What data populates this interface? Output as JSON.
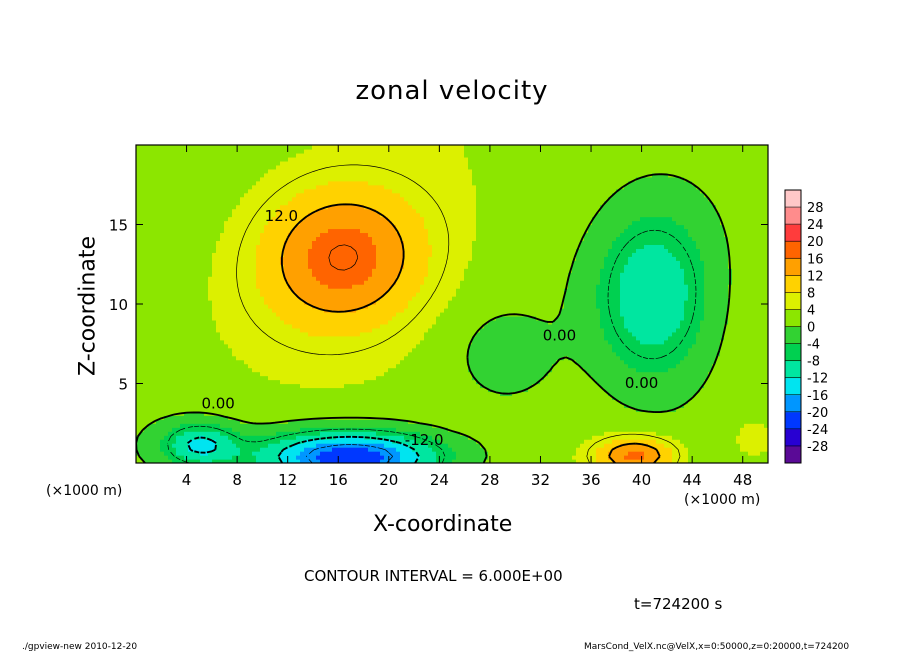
{
  "chart_data": {
    "type": "heatmap",
    "title": "zonal velocity",
    "xlabel": "X-coordinate",
    "ylabel": "Z-coordinate",
    "x_unit": "(×1000 m)",
    "xlim": [
      0,
      50
    ],
    "ylim": [
      0,
      20
    ],
    "x_ticks": [
      4,
      8,
      12,
      16,
      20,
      24,
      28,
      32,
      36,
      40,
      44,
      48
    ],
    "y_ticks": [
      5,
      10,
      15
    ],
    "colorbar": {
      "levels": [
        -28,
        -24,
        -20,
        -16,
        -12,
        -8,
        -4,
        0,
        4,
        8,
        12,
        16,
        20,
        24,
        28
      ],
      "colors": [
        "#5a0a96",
        "#2800d2",
        "#0038ff",
        "#0096ff",
        "#00e4f0",
        "#00e6a0",
        "#00d050",
        "#32d232",
        "#8ce600",
        "#dcf000",
        "#ffd200",
        "#ffa000",
        "#ff6400",
        "#ff3c3c",
        "#ff8c8c",
        "#ffc8c8"
      ]
    },
    "features": [
      {
        "type": "max",
        "x": 16.5,
        "z": 13.0,
        "value": 18
      },
      {
        "type": "min",
        "x": 16.0,
        "z": 0.5,
        "value": -22
      },
      {
        "type": "min",
        "x": 41.0,
        "z": 10.5,
        "value": -10
      },
      {
        "type": "max",
        "x": 39.5,
        "z": 0.7,
        "value": 18
      }
    ],
    "contour_labels": [
      {
        "text": "12.0",
        "x": 11.5,
        "z": 15.5
      },
      {
        "text": "0.00",
        "x": 6.5,
        "z": 3.7
      },
      {
        "text": "-12.0",
        "x": 22.8,
        "z": 1.4
      },
      {
        "text": "0.00",
        "x": 33.5,
        "z": 8.0
      },
      {
        "text": "0.00",
        "x": 40.0,
        "z": 5.0
      }
    ]
  },
  "annotations": {
    "contour_interval": "CONTOUR INTERVAL = 6.000E+00",
    "time": "t=724200 s",
    "footer_left": "./gpview-new   2010-12-20",
    "footer_right": "MarsCond_VelX.nc@VelX,x=0:50000,z=0:20000,t=724200"
  }
}
